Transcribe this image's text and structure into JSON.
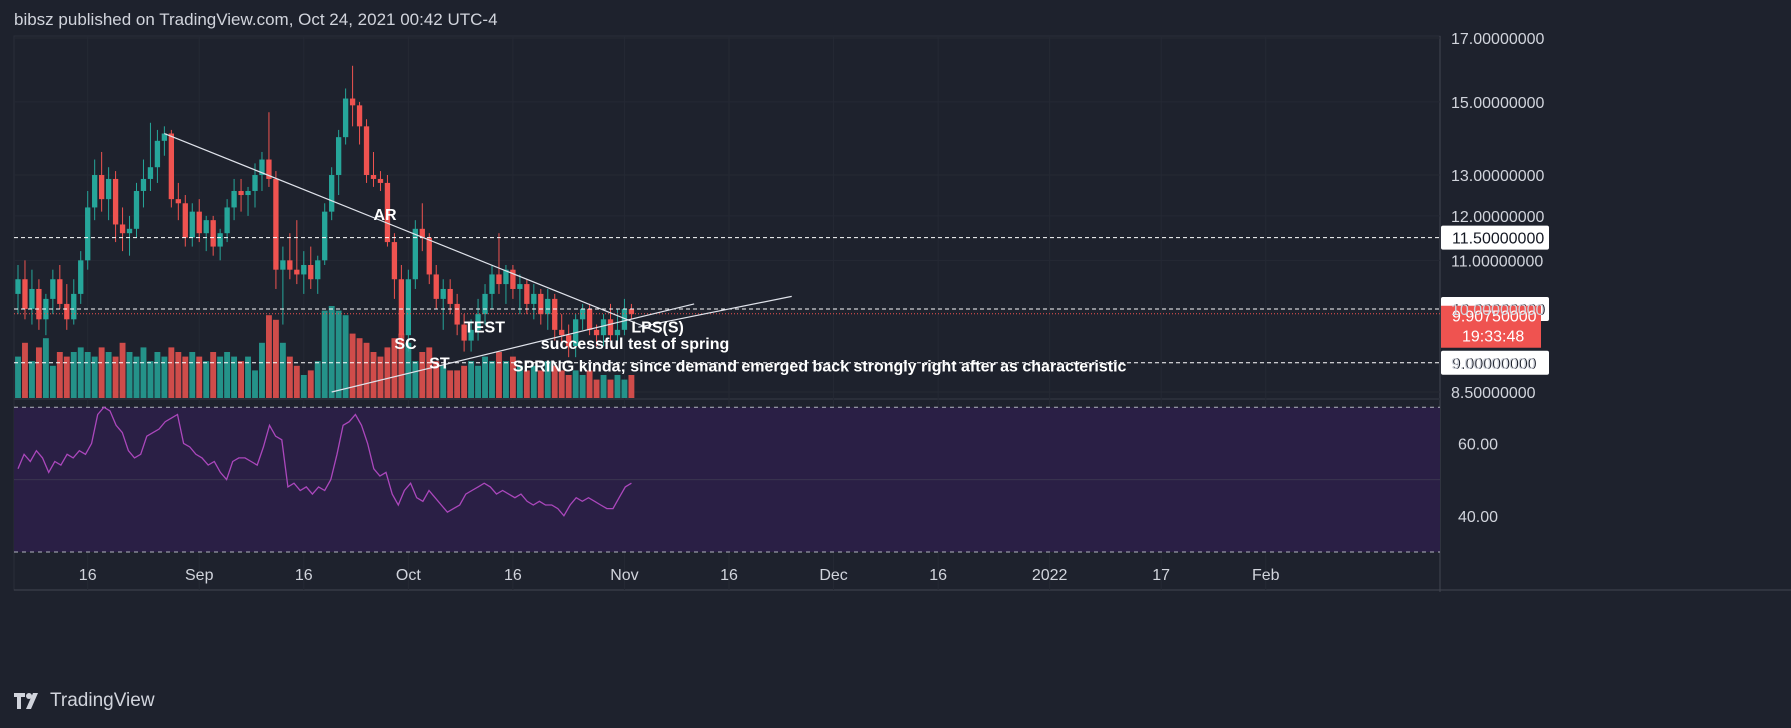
{
  "header": {
    "text": "bibsz published on TradingView.com, Oct 24, 2021 00:42 UTC-4"
  },
  "footer": {
    "brand": "TradingView"
  },
  "colors": {
    "background": "#1e222d",
    "up": "#26a69a",
    "down": "#ef5350",
    "rsi_line": "#ab47bc",
    "rsi_band": "#2a1f45",
    "text": "#d1d4dc",
    "white": "#ffffff"
  },
  "chart_data": [
    {
      "type": "candlestick",
      "title": "",
      "scale": "log",
      "price_axis_ticks": [
        "17.00000000",
        "15.00000000",
        "13.00000000",
        "12.00000000",
        "11.00000000",
        "10.00000000",
        "9.00000000",
        "8.50000000"
      ],
      "price_ticks_values": [
        17,
        15,
        13,
        12,
        11,
        10,
        9,
        8.5
      ],
      "ylim": [
        8.5,
        17
      ],
      "time_axis_labels": [
        "16",
        "Sep",
        "16",
        "Oct",
        "16",
        "Nov",
        "16",
        "Dec",
        "16",
        "2022",
        "17",
        "Feb"
      ],
      "x_range": [
        "2021-08-06",
        "2022-02-26"
      ],
      "horizontal_levels": [
        {
          "price": 11.5,
          "label": "11.50000000"
        },
        {
          "price": 10.0,
          "label": "10.00000000"
        },
        {
          "price": 9.0,
          "label": "9.00000000"
        }
      ],
      "last_price": {
        "value": "9.90750000",
        "countdown": "19:33:48"
      },
      "candles": [
        {
          "date": "2021-08-06",
          "o": 10.3,
          "h": 10.9,
          "l": 9.9,
          "c": 10.6
        },
        {
          "date": "2021-08-07",
          "o": 10.6,
          "h": 11.0,
          "l": 9.8,
          "c": 10.0
        },
        {
          "date": "2021-08-08",
          "o": 10.0,
          "h": 10.8,
          "l": 9.7,
          "c": 10.4
        },
        {
          "date": "2021-08-09",
          "o": 10.4,
          "h": 10.6,
          "l": 9.6,
          "c": 9.8
        },
        {
          "date": "2021-08-10",
          "o": 9.8,
          "h": 10.3,
          "l": 9.5,
          "c": 10.2
        },
        {
          "date": "2021-08-11",
          "o": 10.2,
          "h": 10.8,
          "l": 9.9,
          "c": 10.6
        },
        {
          "date": "2021-08-12",
          "o": 10.6,
          "h": 10.9,
          "l": 10.0,
          "c": 10.1
        },
        {
          "date": "2021-08-13",
          "o": 10.1,
          "h": 10.5,
          "l": 9.6,
          "c": 9.8
        },
        {
          "date": "2021-08-14",
          "o": 9.8,
          "h": 10.6,
          "l": 9.7,
          "c": 10.3
        },
        {
          "date": "2021-08-15",
          "o": 10.3,
          "h": 11.2,
          "l": 10.1,
          "c": 11.0
        },
        {
          "date": "2021-08-16",
          "o": 11.0,
          "h": 12.6,
          "l": 10.8,
          "c": 12.2
        },
        {
          "date": "2021-08-17",
          "o": 12.2,
          "h": 13.4,
          "l": 11.9,
          "c": 13.0
        },
        {
          "date": "2021-08-18",
          "o": 13.0,
          "h": 13.6,
          "l": 12.1,
          "c": 12.4
        },
        {
          "date": "2021-08-19",
          "o": 12.4,
          "h": 13.2,
          "l": 11.9,
          "c": 12.9
        },
        {
          "date": "2021-08-20",
          "o": 12.9,
          "h": 13.1,
          "l": 11.4,
          "c": 11.8
        },
        {
          "date": "2021-08-21",
          "o": 11.8,
          "h": 12.2,
          "l": 11.2,
          "c": 11.6
        },
        {
          "date": "2021-08-22",
          "o": 11.6,
          "h": 12.0,
          "l": 11.1,
          "c": 11.7
        },
        {
          "date": "2021-08-23",
          "o": 11.7,
          "h": 12.8,
          "l": 11.5,
          "c": 12.6
        },
        {
          "date": "2021-08-24",
          "o": 12.6,
          "h": 13.4,
          "l": 12.2,
          "c": 12.9
        },
        {
          "date": "2021-08-25",
          "o": 12.9,
          "h": 14.4,
          "l": 12.6,
          "c": 13.2
        },
        {
          "date": "2021-08-26",
          "o": 13.2,
          "h": 14.2,
          "l": 12.8,
          "c": 13.9
        },
        {
          "date": "2021-08-27",
          "o": 13.9,
          "h": 14.3,
          "l": 13.5,
          "c": 14.1
        },
        {
          "date": "2021-08-28",
          "o": 14.1,
          "h": 14.2,
          "l": 12.2,
          "c": 12.4
        },
        {
          "date": "2021-08-29",
          "o": 12.4,
          "h": 12.8,
          "l": 11.9,
          "c": 12.3
        },
        {
          "date": "2021-08-30",
          "o": 12.3,
          "h": 12.5,
          "l": 11.3,
          "c": 11.5
        },
        {
          "date": "2021-08-31",
          "o": 11.5,
          "h": 12.3,
          "l": 11.3,
          "c": 12.1
        },
        {
          "date": "2021-09-01",
          "o": 12.1,
          "h": 12.4,
          "l": 11.4,
          "c": 11.6
        },
        {
          "date": "2021-09-02",
          "o": 11.6,
          "h": 12.0,
          "l": 11.2,
          "c": 11.9
        },
        {
          "date": "2021-09-03",
          "o": 11.9,
          "h": 12.0,
          "l": 11.1,
          "c": 11.3
        },
        {
          "date": "2021-09-04",
          "o": 11.3,
          "h": 11.7,
          "l": 11.0,
          "c": 11.6
        },
        {
          "date": "2021-09-05",
          "o": 11.6,
          "h": 12.4,
          "l": 11.4,
          "c": 12.2
        },
        {
          "date": "2021-09-06",
          "o": 12.2,
          "h": 12.9,
          "l": 11.9,
          "c": 12.6
        },
        {
          "date": "2021-09-07",
          "o": 12.6,
          "h": 12.9,
          "l": 12.1,
          "c": 12.5
        },
        {
          "date": "2021-09-08",
          "o": 12.5,
          "h": 12.7,
          "l": 12.0,
          "c": 12.6
        },
        {
          "date": "2021-09-09",
          "o": 12.6,
          "h": 13.3,
          "l": 12.2,
          "c": 13.0
        },
        {
          "date": "2021-09-10",
          "o": 13.0,
          "h": 13.6,
          "l": 12.6,
          "c": 13.4
        },
        {
          "date": "2021-09-11",
          "o": 13.4,
          "h": 14.7,
          "l": 12.7,
          "c": 12.9
        },
        {
          "date": "2021-09-12",
          "o": 12.9,
          "h": 13.1,
          "l": 10.4,
          "c": 10.8
        },
        {
          "date": "2021-09-13",
          "o": 10.8,
          "h": 11.3,
          "l": 9.7,
          "c": 11.0
        },
        {
          "date": "2021-09-14",
          "o": 11.0,
          "h": 11.6,
          "l": 10.6,
          "c": 10.8
        },
        {
          "date": "2021-09-15",
          "o": 10.8,
          "h": 11.9,
          "l": 10.5,
          "c": 10.7
        },
        {
          "date": "2021-09-16",
          "o": 10.7,
          "h": 11.2,
          "l": 10.3,
          "c": 10.9
        },
        {
          "date": "2021-09-17",
          "o": 10.9,
          "h": 11.3,
          "l": 10.4,
          "c": 10.6
        },
        {
          "date": "2021-09-18",
          "o": 10.6,
          "h": 11.1,
          "l": 10.3,
          "c": 11.0
        },
        {
          "date": "2021-09-19",
          "o": 11.0,
          "h": 12.3,
          "l": 10.9,
          "c": 12.1
        },
        {
          "date": "2021-09-20",
          "o": 12.1,
          "h": 13.2,
          "l": 11.9,
          "c": 13.0
        },
        {
          "date": "2021-09-21",
          "o": 13.0,
          "h": 14.2,
          "l": 12.5,
          "c": 14.0
        },
        {
          "date": "2021-09-22",
          "o": 14.0,
          "h": 15.4,
          "l": 13.8,
          "c": 15.1
        },
        {
          "date": "2021-09-23",
          "o": 15.1,
          "h": 16.1,
          "l": 14.3,
          "c": 14.9
        },
        {
          "date": "2021-09-24",
          "o": 14.9,
          "h": 15.0,
          "l": 13.8,
          "c": 14.3
        },
        {
          "date": "2021-09-25",
          "o": 14.3,
          "h": 14.5,
          "l": 12.8,
          "c": 13.0
        },
        {
          "date": "2021-09-26",
          "o": 13.0,
          "h": 13.6,
          "l": 12.7,
          "c": 12.9
        },
        {
          "date": "2021-09-27",
          "o": 12.9,
          "h": 13.1,
          "l": 12.6,
          "c": 12.8
        },
        {
          "date": "2021-09-28",
          "o": 12.8,
          "h": 13.0,
          "l": 11.3,
          "c": 11.4
        },
        {
          "date": "2021-09-29",
          "o": 11.4,
          "h": 11.6,
          "l": 10.2,
          "c": 10.6
        },
        {
          "date": "2021-09-30",
          "o": 10.6,
          "h": 10.9,
          "l": 9.3,
          "c": 9.5
        },
        {
          "date": "2021-10-01",
          "o": 9.5,
          "h": 10.8,
          "l": 9.2,
          "c": 10.6
        },
        {
          "date": "2021-10-02",
          "o": 10.6,
          "h": 11.9,
          "l": 10.4,
          "c": 11.7
        },
        {
          "date": "2021-10-03",
          "o": 11.7,
          "h": 12.3,
          "l": 11.2,
          "c": 11.5
        },
        {
          "date": "2021-10-04",
          "o": 11.5,
          "h": 11.6,
          "l": 10.5,
          "c": 10.7
        },
        {
          "date": "2021-10-05",
          "o": 10.7,
          "h": 10.9,
          "l": 10.0,
          "c": 10.2
        },
        {
          "date": "2021-10-06",
          "o": 10.2,
          "h": 10.6,
          "l": 9.6,
          "c": 10.4
        },
        {
          "date": "2021-10-07",
          "o": 10.4,
          "h": 10.6,
          "l": 9.9,
          "c": 10.1
        },
        {
          "date": "2021-10-08",
          "o": 10.1,
          "h": 10.3,
          "l": 9.5,
          "c": 9.7
        },
        {
          "date": "2021-10-09",
          "o": 9.7,
          "h": 9.9,
          "l": 9.2,
          "c": 9.4
        },
        {
          "date": "2021-10-10",
          "o": 9.4,
          "h": 9.8,
          "l": 9.2,
          "c": 9.6
        },
        {
          "date": "2021-10-11",
          "o": 9.6,
          "h": 10.2,
          "l": 9.4,
          "c": 9.9
        },
        {
          "date": "2021-10-12",
          "o": 9.9,
          "h": 10.5,
          "l": 9.7,
          "c": 10.3
        },
        {
          "date": "2021-10-13",
          "o": 10.3,
          "h": 10.9,
          "l": 10.0,
          "c": 10.7
        },
        {
          "date": "2021-10-14",
          "o": 10.7,
          "h": 11.6,
          "l": 10.3,
          "c": 10.5
        },
        {
          "date": "2021-10-15",
          "o": 10.5,
          "h": 10.9,
          "l": 10.1,
          "c": 10.8
        },
        {
          "date": "2021-10-16",
          "o": 10.8,
          "h": 10.9,
          "l": 10.2,
          "c": 10.4
        },
        {
          "date": "2021-10-17",
          "o": 10.4,
          "h": 10.7,
          "l": 9.9,
          "c": 10.5
        },
        {
          "date": "2021-10-18",
          "o": 10.5,
          "h": 10.6,
          "l": 9.9,
          "c": 10.1
        },
        {
          "date": "2021-10-19",
          "o": 10.1,
          "h": 10.5,
          "l": 9.8,
          "c": 10.3
        },
        {
          "date": "2021-10-20",
          "o": 10.3,
          "h": 10.4,
          "l": 9.7,
          "c": 9.9
        },
        {
          "date": "2021-10-21",
          "o": 9.9,
          "h": 10.4,
          "l": 9.6,
          "c": 10.2
        },
        {
          "date": "2021-10-22",
          "o": 10.2,
          "h": 10.3,
          "l": 9.4,
          "c": 9.6
        },
        {
          "date": "2021-10-23",
          "o": 9.6,
          "h": 9.9,
          "l": 9.3,
          "c": 9.5
        },
        {
          "date": "2021-10-24",
          "o": 9.5,
          "h": 9.7,
          "l": 9.1,
          "c": 9.3
        },
        {
          "date": "2021-10-25",
          "o": 9.3,
          "h": 9.9,
          "l": 9.1,
          "c": 9.8
        },
        {
          "date": "2021-10-26",
          "o": 9.8,
          "h": 10.1,
          "l": 9.6,
          "c": 10.0
        },
        {
          "date": "2021-10-27",
          "o": 10.0,
          "h": 10.1,
          "l": 9.5,
          "c": 9.6
        },
        {
          "date": "2021-10-28",
          "o": 9.6,
          "h": 9.7,
          "l": 9.3,
          "c": 9.5
        },
        {
          "date": "2021-10-29",
          "o": 9.5,
          "h": 9.9,
          "l": 9.3,
          "c": 9.8
        },
        {
          "date": "2021-10-30",
          "o": 9.8,
          "h": 10.1,
          "l": 9.4,
          "c": 9.5
        },
        {
          "date": "2021-10-31",
          "o": 9.5,
          "h": 10.0,
          "l": 9.4,
          "c": 9.6
        },
        {
          "date": "2021-11-01",
          "o": 9.6,
          "h": 10.2,
          "l": 9.5,
          "c": 10.0
        },
        {
          "date": "2021-11-02",
          "o": 10.0,
          "h": 10.1,
          "l": 9.8,
          "c": 9.9
        }
      ],
      "volume_bar_heights_relative": [
        0.45,
        0.6,
        0.4,
        0.55,
        0.65,
        0.35,
        0.5,
        0.45,
        0.5,
        0.55,
        0.5,
        0.45,
        0.55,
        0.5,
        0.45,
        0.6,
        0.5,
        0.45,
        0.55,
        0.4,
        0.5,
        0.45,
        0.55,
        0.5,
        0.45,
        0.5,
        0.45,
        0.4,
        0.5,
        0.45,
        0.5,
        0.45,
        0.4,
        0.45,
        0.3,
        0.6,
        0.9,
        0.85,
        0.6,
        0.45,
        0.35,
        0.25,
        0.3,
        0.4,
        0.95,
        1.0,
        0.95,
        0.9,
        0.7,
        0.65,
        0.6,
        0.5,
        0.45,
        0.55,
        0.65,
        0.7,
        0.6,
        0.4,
        0.5,
        0.55,
        0.4,
        0.35,
        0.3,
        0.3,
        0.35,
        0.4,
        0.35,
        0.45,
        0.4,
        0.5,
        0.4,
        0.45,
        0.35,
        0.3,
        0.35,
        0.3,
        0.4,
        0.35,
        0.3,
        0.25,
        0.3,
        0.25,
        0.3,
        0.2,
        0.25,
        0.2,
        0.25,
        0.2,
        0.25,
        0.2,
        0.05
      ],
      "annotations": [
        {
          "text": "AR",
          "date": "2021-09-26",
          "price": 11.9
        },
        {
          "text": "SC",
          "date": "2021-09-29",
          "price": 9.25
        },
        {
          "text": "ST",
          "date": "2021-10-04",
          "price": 8.9
        },
        {
          "text": "TEST",
          "date": "2021-10-09",
          "price": 9.55
        },
        {
          "text": "LPS(S)",
          "date": "2021-11-02",
          "price": 9.55
        },
        {
          "text": "successful test of spring",
          "date": "2021-10-20",
          "price": 9.25
        },
        {
          "text": "SPRING kinda; since demand emerged back strongly right after as characteristic",
          "date": "2021-10-16",
          "price": 8.85
        }
      ],
      "trend_lines": [
        {
          "from": {
            "date": "2021-08-27",
            "price": 14.1
          },
          "to": {
            "date": "2021-11-06",
            "price": 9.55
          }
        },
        {
          "from": {
            "date": "2021-09-20",
            "price": 8.5
          },
          "to": {
            "date": "2021-11-11",
            "price": 10.1
          }
        },
        {
          "from": {
            "date": "2021-11-03",
            "price": 9.65
          },
          "to": {
            "date": "2021-11-25",
            "price": 10.25
          }
        }
      ]
    },
    {
      "type": "line",
      "title": "",
      "ylim": [
        30,
        72
      ],
      "tick_labels": [
        "60.00",
        "40.00"
      ],
      "tick_values": [
        60,
        40
      ],
      "band": [
        30,
        70
      ],
      "series": [
        {
          "values": [
            53,
            57,
            55,
            58,
            56,
            52,
            55,
            54,
            57,
            56,
            58,
            57,
            60,
            68,
            70,
            69,
            65,
            63,
            58,
            56,
            57,
            62,
            63,
            64,
            66,
            67,
            68,
            60,
            59,
            57,
            56,
            54,
            55,
            52,
            50,
            55,
            56,
            56,
            55,
            54,
            59,
            65,
            62,
            61,
            48,
            49,
            47,
            48,
            46,
            48,
            47,
            50,
            57,
            65,
            66,
            68,
            65,
            60,
            53,
            51,
            52,
            46,
            43,
            47,
            49,
            45,
            44,
            47,
            45,
            43,
            41,
            42,
            43,
            46,
            47,
            48,
            49,
            48,
            46,
            47,
            46,
            45,
            46,
            44,
            43,
            44,
            43,
            43,
            42,
            40,
            43,
            45,
            44,
            45,
            44,
            43,
            42,
            42,
            45,
            48,
            49
          ]
        }
      ]
    }
  ]
}
